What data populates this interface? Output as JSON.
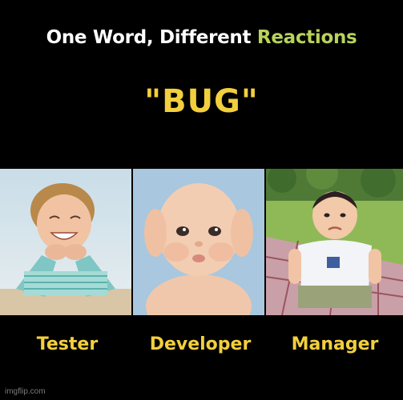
{
  "headline": {
    "prefix": "One Word, Different ",
    "accent": "Reactions"
  },
  "keyword": "\"BUG\"",
  "panels": [
    {
      "label": "Tester"
    },
    {
      "label": "Developer"
    },
    {
      "label": "Manager"
    }
  ],
  "watermark": "imgflip.com",
  "colors": {
    "background": "#000000",
    "headline": "#ffffff",
    "accent": "#b9d25a",
    "labels": "#f2cf3c"
  }
}
